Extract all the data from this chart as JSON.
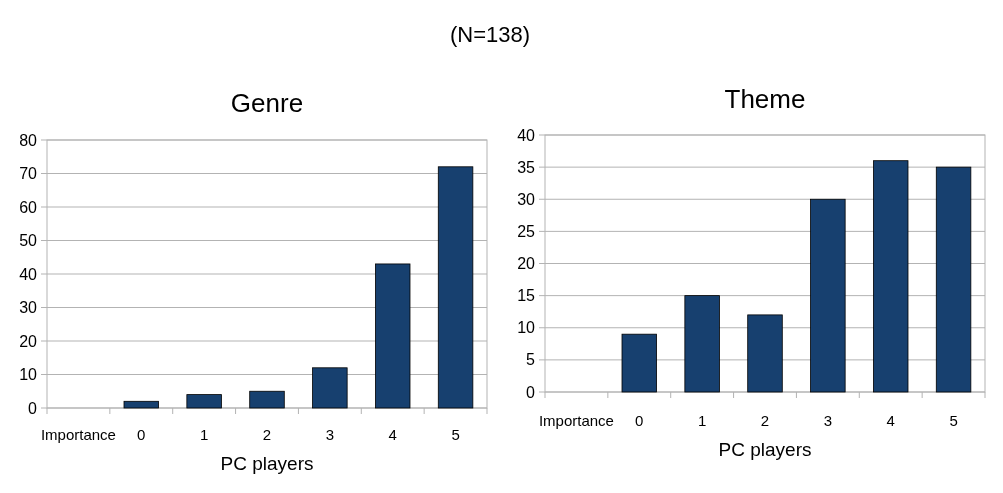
{
  "chart_data": [
    {
      "type": "bar",
      "title": "Genre",
      "annotations": [
        "(N=138)"
      ],
      "xlabel": "PC players",
      "categories": [
        "Importance",
        "0",
        "1",
        "2",
        "3",
        "4",
        "5"
      ],
      "values": [
        null,
        2,
        4,
        5,
        12,
        43,
        72
      ],
      "color": "#17406f",
      "ylim": [
        0,
        80
      ],
      "yticks": [
        0,
        10,
        20,
        30,
        40,
        50,
        60,
        70,
        80
      ],
      "grid": "y"
    },
    {
      "type": "bar",
      "title": "Theme",
      "xlabel": "PC players",
      "categories": [
        "Importance",
        "0",
        "1",
        "2",
        "3",
        "4",
        "5"
      ],
      "values": [
        null,
        9,
        15,
        12,
        30,
        36,
        35
      ],
      "color": "#17406f",
      "ylim": [
        0,
        40
      ],
      "yticks": [
        0,
        5,
        10,
        15,
        20,
        25,
        30,
        35,
        40
      ],
      "grid": "y"
    }
  ]
}
